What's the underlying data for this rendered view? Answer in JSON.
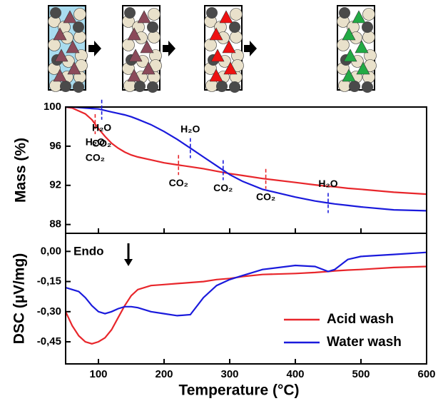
{
  "chart_data": [
    {
      "type": "line",
      "ylabel": "Mass (%)",
      "x": [
        50,
        60,
        70,
        80,
        90,
        100,
        110,
        120,
        130,
        140,
        150,
        160,
        180,
        200,
        220,
        240,
        260,
        280,
        300,
        320,
        350,
        400,
        430,
        450,
        460,
        480,
        500,
        550,
        600
      ],
      "xlim": [
        50,
        600
      ],
      "xticks": [
        100,
        200,
        300,
        400,
        500,
        600
      ],
      "ylim": [
        87.1,
        100
      ],
      "yticks": [
        100,
        96,
        92,
        88
      ],
      "series": [
        {
          "name": "Acid wash",
          "color": "#e8262b",
          "values": [
            100,
            99.9,
            99.6,
            99.3,
            98.7,
            97.8,
            97.0,
            96.3,
            95.8,
            95.4,
            95.1,
            94.9,
            94.6,
            94.3,
            94.1,
            93.9,
            93.7,
            93.45,
            93.2,
            93.0,
            92.7,
            92.3,
            92.05,
            91.9,
            91.85,
            91.7,
            91.6,
            91.3,
            91.1
          ]
        },
        {
          "name": "Water wash",
          "color": "#1a1adc",
          "values": [
            100,
            100,
            99.95,
            99.9,
            99.85,
            99.8,
            99.65,
            99.5,
            99.35,
            99.2,
            99.0,
            98.75,
            98.2,
            97.5,
            96.7,
            95.8,
            94.9,
            94.0,
            93.1,
            92.4,
            91.6,
            90.8,
            90.4,
            90.2,
            90.1,
            89.95,
            89.8,
            89.5,
            89.4
          ]
        }
      ],
      "annotations": [
        {
          "x": 95,
          "color": "#e8262b",
          "side": "below",
          "text": [
            "H₂O",
            "CO₂"
          ]
        },
        {
          "x": 105,
          "color": "#1a1adc",
          "side": "below",
          "text": [
            "H₂O",
            "CO₂"
          ]
        },
        {
          "x": 222,
          "color": "#e8262b",
          "side": "below",
          "text": [
            "CO₂"
          ]
        },
        {
          "x": 240,
          "color": "#1a1adc",
          "side": "above",
          "text": [
            "H₂O"
          ]
        },
        {
          "x": 290,
          "color": "#1a1adc",
          "side": "below",
          "text": [
            "CO₂"
          ]
        },
        {
          "x": 355,
          "color": "#e8262b",
          "side": "below",
          "text": [
            "CO₂"
          ]
        },
        {
          "x": 450,
          "color": "#1a1adc",
          "side": "above",
          "text": [
            "H₂O"
          ]
        }
      ]
    },
    {
      "type": "line",
      "ylabel": "DSC (µV/mg)",
      "xlabel": "Temperature (°C)",
      "annotation": "Endo",
      "legend": "lower right",
      "x": [
        50,
        60,
        70,
        80,
        90,
        100,
        110,
        120,
        130,
        140,
        150,
        160,
        180,
        200,
        220,
        240,
        260,
        280,
        300,
        320,
        350,
        400,
        430,
        450,
        460,
        480,
        500,
        550,
        600
      ],
      "xlim": [
        50,
        600
      ],
      "xticks": [
        100,
        200,
        300,
        400,
        500,
        600
      ],
      "ylim": [
        -0.56,
        0.09
      ],
      "yticks": [
        {
          "value": 0,
          "label": "0,00"
        },
        {
          "value": -0.15,
          "label": "-0,15"
        },
        {
          "value": -0.3,
          "label": "-0,30"
        },
        {
          "value": -0.45,
          "label": "-0,45"
        }
      ],
      "series": [
        {
          "name": "Acid wash",
          "color": "#e8262b",
          "values": [
            -0.3,
            -0.37,
            -0.42,
            -0.45,
            -0.46,
            -0.45,
            -0.43,
            -0.39,
            -0.33,
            -0.27,
            -0.22,
            -0.19,
            -0.17,
            -0.165,
            -0.16,
            -0.155,
            -0.15,
            -0.14,
            -0.135,
            -0.125,
            -0.115,
            -0.11,
            -0.105,
            -0.1,
            -0.097,
            -0.093,
            -0.09,
            -0.08,
            -0.075
          ]
        },
        {
          "name": "Water wash",
          "color": "#1a1adc",
          "values": [
            -0.18,
            -0.19,
            -0.2,
            -0.23,
            -0.27,
            -0.3,
            -0.31,
            -0.3,
            -0.285,
            -0.275,
            -0.275,
            -0.28,
            -0.3,
            -0.31,
            -0.32,
            -0.315,
            -0.23,
            -0.17,
            -0.14,
            -0.12,
            -0.09,
            -0.07,
            -0.075,
            -0.1,
            -0.09,
            -0.04,
            -0.025,
            -0.015,
            -0.005
          ]
        }
      ]
    }
  ]
}
